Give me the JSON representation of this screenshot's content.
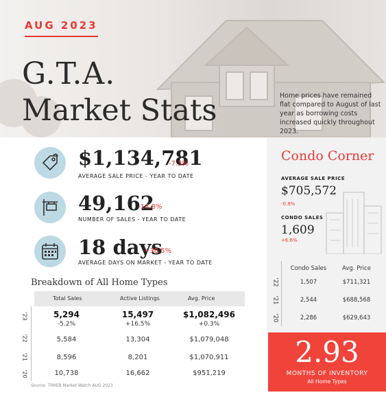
{
  "header": {
    "month": "AUG 2023",
    "title_line1": "G.T.A.",
    "title_line2": "Market Stats",
    "description": "Home prices have remained flat compared to August of last year as borrowing costs increased quickly throughout 2023."
  },
  "stats": [
    {
      "icon": "price-tag-icon",
      "value": "$1,134,781",
      "change": "-7.3%",
      "label": "AVERAGE SALE PRICE - YEAR TO DATE"
    },
    {
      "icon": "for-sale-sign-icon",
      "value": "49,162",
      "change": "-14.8%",
      "label": "NUMBER OF SALES - YEAR TO DATE"
    },
    {
      "icon": "calendar-icon",
      "value": "18 days",
      "change": "+38.5%",
      "label": "AVERAGE DAYS ON MARKET - YEAR TO DATE"
    }
  ],
  "breakdown": {
    "title": "Breakdown of All Home Types",
    "columns": [
      "Total Sales",
      "Active Listings",
      "Avg. Price"
    ],
    "rows": [
      {
        "year": "'23",
        "values": [
          "5,294",
          "15,497",
          "$1,082,496"
        ],
        "changes": [
          "-5.2%",
          "+16.5%",
          "+0.3%"
        ]
      },
      {
        "year": "'22",
        "values": [
          "5,584",
          "13,304",
          "$1,079,048"
        ]
      },
      {
        "year": "'21",
        "values": [
          "8,596",
          "8,201",
          "$1,070,911"
        ]
      },
      {
        "year": "'20",
        "values": [
          "10,738",
          "16,662",
          "$951,219"
        ]
      }
    ],
    "source": "Source: TRREB Market Watch AUG 2023"
  },
  "condo": {
    "title": "Condo Corner",
    "avg_price_label": "AVERAGE SALE PRICE",
    "avg_price_value": "$705,572",
    "avg_price_change": "-0.8%",
    "sales_label": "CONDO SALES",
    "sales_value": "1,609",
    "sales_change": "+6.6%",
    "columns": [
      "Condo Sales",
      "Avg. Price"
    ],
    "rows": [
      {
        "year": "'22",
        "values": [
          "1,507",
          "$711,321"
        ]
      },
      {
        "year": "'21",
        "values": [
          "2,544",
          "$688,568"
        ]
      },
      {
        "year": "'20",
        "values": [
          "2,286",
          "$629,643"
        ]
      }
    ]
  },
  "inventory": {
    "value": "2.93",
    "label": "MONTHS OF INVENTORY",
    "sublabel": "All Home Types"
  },
  "colors": {
    "accent": "#e53935",
    "icon_bg": "#bcd9e4",
    "inventory_bg": "#f0433a"
  }
}
